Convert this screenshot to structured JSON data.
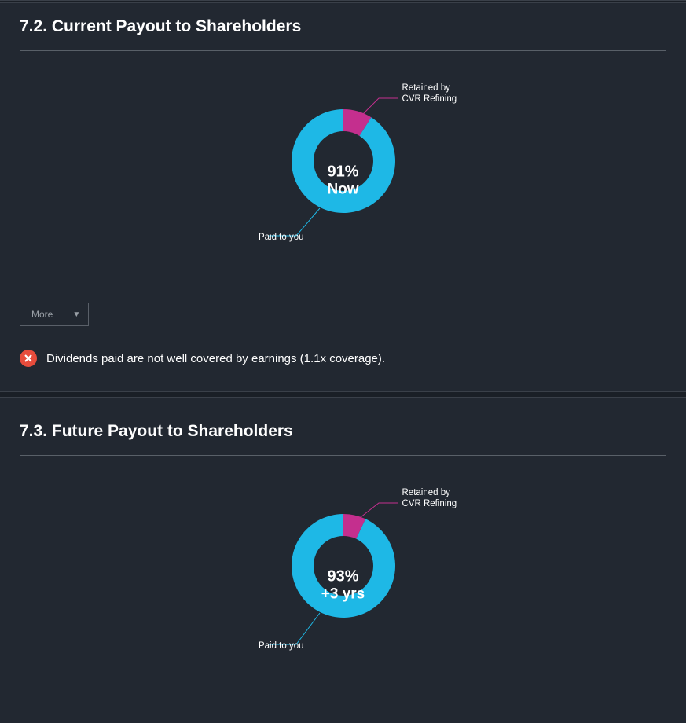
{
  "background_color": "#222831",
  "section_current": {
    "title": "7.2. Current Payout to Shareholders",
    "chart": {
      "type": "donut",
      "paid_value": 91,
      "retained_value": 9,
      "paid_color": "#1eb8e6",
      "retained_color": "#c42f8e",
      "hole_color": "#222831",
      "center_percent": "91%",
      "center_sub": "Now",
      "center_text_color": "#ffffff",
      "label_retained_line1": "Retained by",
      "label_retained_line2": "CVR Refining",
      "label_paid": "Paid to you",
      "leader_color": "#1eb8e6",
      "leader_color_retained": "#c42f8e",
      "outer_radius": 66,
      "inner_radius": 38
    },
    "more_label": "More",
    "check": {
      "status": "fail",
      "icon_color": "#e74c3c",
      "text": "Dividends paid are not well covered by earnings (1.1x coverage)."
    }
  },
  "section_future": {
    "title": "7.3. Future Payout to Shareholders",
    "chart": {
      "type": "donut",
      "paid_value": 93,
      "retained_value": 7,
      "paid_color": "#1eb8e6",
      "retained_color": "#c42f8e",
      "hole_color": "#222831",
      "center_percent": "93%",
      "center_sub": "+3 yrs",
      "center_text_color": "#ffffff",
      "label_retained_line1": "Retained by",
      "label_retained_line2": "CVR Refining",
      "label_paid": "Paid to you",
      "leader_color": "#1eb8e6",
      "leader_color_retained": "#c42f8e",
      "outer_radius": 66,
      "inner_radius": 38
    }
  }
}
